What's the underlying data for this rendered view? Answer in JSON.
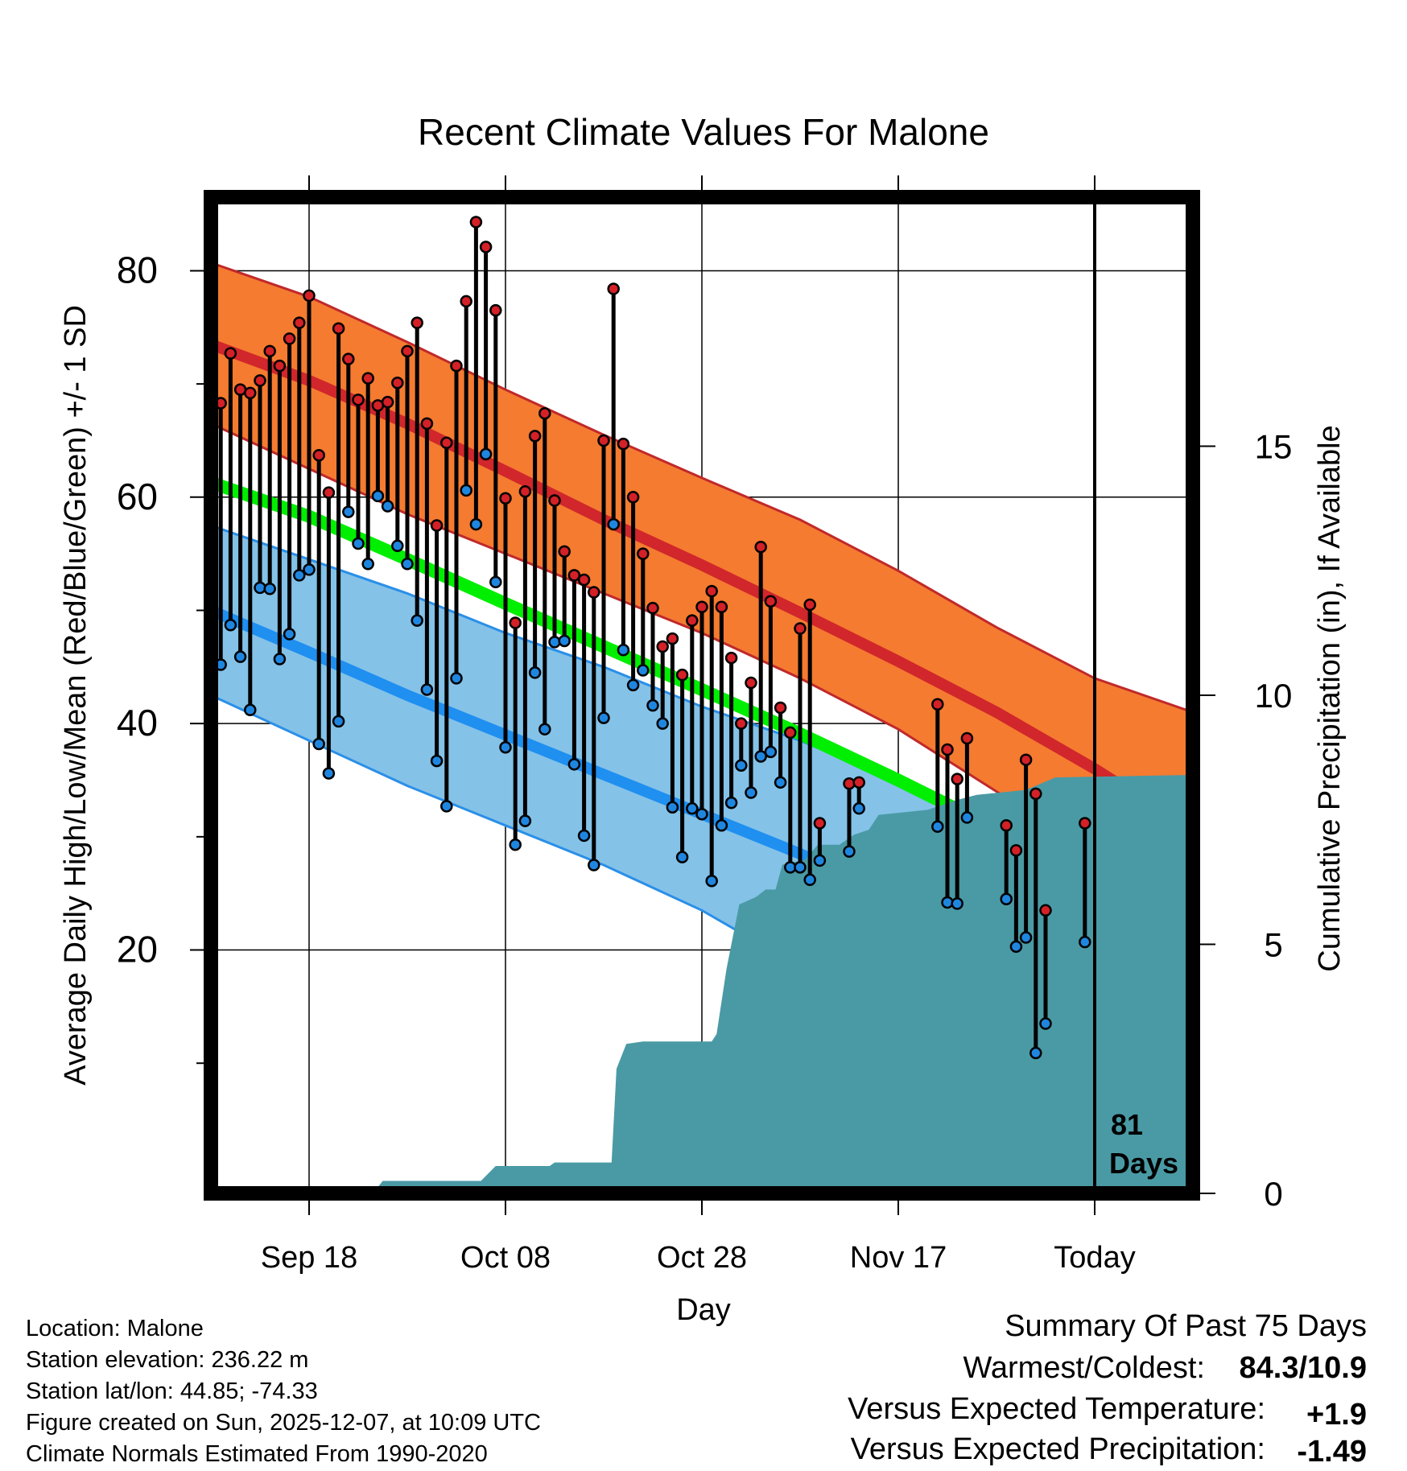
{
  "chart_data": {
    "type": "line",
    "title": "Recent Climate Values For Malone",
    "xlabel": "Day",
    "ylabel": "Average Daily High/Low/Mean (Red/Blue/Green) +/- 1 SD",
    "y2label": "Cumulative Precipitation (in), If Available",
    "xlim": [
      -10,
      90
    ],
    "ylim": [
      -1.5,
      86.5
    ],
    "y2lim": [
      0,
      20
    ],
    "xticks": [
      {
        "x": 0,
        "label": "Sep 18"
      },
      {
        "x": 20,
        "label": "Oct 08"
      },
      {
        "x": 40,
        "label": "Oct 28"
      },
      {
        "x": 60,
        "label": "Nov 17"
      },
      {
        "x": 80,
        "label": "Today"
      }
    ],
    "yticks_major": [
      20,
      40,
      60,
      80
    ],
    "yticks_minor": [
      10,
      30,
      50,
      70
    ],
    "y2ticks": [
      0,
      5,
      10,
      15
    ],
    "today_x": 80,
    "today_label_1": "81",
    "today_label_2": "Days",
    "normals": {
      "x": [
        -10,
        0,
        10,
        20,
        30,
        40,
        50,
        60,
        70,
        80,
        90
      ],
      "high_mean": [
        73.5,
        70.3,
        66.5,
        62.3,
        58.0,
        54.0,
        49.8,
        45.5,
        41.0,
        36.0,
        30.5
      ],
      "high_upper": [
        80.7,
        77.7,
        73.7,
        69.5,
        65.5,
        61.7,
        58.0,
        53.5,
        48.5,
        44.0,
        41.0
      ],
      "high_lower": [
        66.5,
        62.5,
        58.5,
        55.0,
        51.5,
        48.0,
        44.0,
        39.5,
        34.0,
        28.5,
        22.0
      ],
      "low_mean": [
        50.0,
        46.3,
        42.5,
        39.0,
        35.5,
        32.0,
        28.5,
        24.5,
        20.5,
        16.5,
        12.5
      ],
      "low_upper": [
        57.5,
        54.5,
        51.5,
        48.0,
        45.0,
        41.5,
        38.5,
        35.0,
        31.0,
        27.5,
        21.5
      ],
      "low_lower": [
        42.5,
        38.5,
        34.5,
        31.0,
        27.5,
        23.5,
        18.5,
        12.0,
        4.0,
        -1.0,
        -5.0
      ],
      "mean": [
        61.3,
        58.3,
        54.5,
        50.6,
        46.8,
        43.0,
        39.1,
        35.0,
        30.7,
        26.2,
        22.7
      ]
    },
    "daily": [
      {
        "x": -10,
        "high": 64.5,
        "low": 45.3
      },
      {
        "x": -9,
        "high": 68.3,
        "low": 45.2
      },
      {
        "x": -8,
        "high": 72.7,
        "low": 48.7
      },
      {
        "x": -7,
        "high": 69.5,
        "low": 45.9
      },
      {
        "x": -6,
        "high": 69.2,
        "low": 41.2
      },
      {
        "x": -5,
        "high": 70.3,
        "low": 52.0
      },
      {
        "x": -4,
        "high": 72.9,
        "low": 51.9
      },
      {
        "x": -3,
        "high": 71.6,
        "low": 45.7
      },
      {
        "x": -2,
        "high": 74.0,
        "low": 47.9
      },
      {
        "x": -1,
        "high": 75.4,
        "low": 53.1
      },
      {
        "x": 0,
        "high": 77.8,
        "low": 53.6
      },
      {
        "x": 1,
        "high": 63.7,
        "low": 38.2
      },
      {
        "x": 2,
        "high": 60.4,
        "low": 35.6
      },
      {
        "x": 3,
        "high": 74.9,
        "low": 40.2
      },
      {
        "x": 4,
        "high": 72.2,
        "low": 58.7
      },
      {
        "x": 5,
        "high": 68.6,
        "low": 55.9
      },
      {
        "x": 6,
        "high": 70.5,
        "low": 54.1
      },
      {
        "x": 7,
        "high": 68.1,
        "low": 60.1
      },
      {
        "x": 8,
        "high": 68.4,
        "low": 59.2
      },
      {
        "x": 9,
        "high": 70.1,
        "low": 55.7
      },
      {
        "x": 10,
        "high": 72.9,
        "low": 54.1
      },
      {
        "x": 11,
        "high": 75.4,
        "low": 49.1
      },
      {
        "x": 12,
        "high": 66.5,
        "low": 43.0
      },
      {
        "x": 13,
        "high": 57.5,
        "low": 36.7
      },
      {
        "x": 14,
        "high": 64.8,
        "low": 32.7
      },
      {
        "x": 15,
        "high": 71.6,
        "low": 44.0
      },
      {
        "x": 16,
        "high": 77.3,
        "low": 60.6
      },
      {
        "x": 17,
        "high": 84.3,
        "low": 57.6
      },
      {
        "x": 18,
        "high": 82.1,
        "low": 63.8
      },
      {
        "x": 19,
        "high": 76.5,
        "low": 52.5
      },
      {
        "x": 20,
        "high": 59.9,
        "low": 37.9
      },
      {
        "x": 21,
        "high": 48.9,
        "low": 29.3
      },
      {
        "x": 22,
        "high": 60.5,
        "low": 31.4
      },
      {
        "x": 23,
        "high": 65.4,
        "low": 44.5
      },
      {
        "x": 24,
        "high": 67.4,
        "low": 39.5
      },
      {
        "x": 25,
        "high": 59.7,
        "low": 47.2
      },
      {
        "x": 26,
        "high": 55.2,
        "low": 47.3
      },
      {
        "x": 27,
        "high": 53.1,
        "low": 36.4
      },
      {
        "x": 28,
        "high": 52.7,
        "low": 30.1
      },
      {
        "x": 29,
        "high": 51.6,
        "low": 27.5
      },
      {
        "x": 30,
        "high": 65.0,
        "low": 40.5
      },
      {
        "x": 31,
        "high": 78.4,
        "low": 57.6
      },
      {
        "x": 32,
        "high": 64.7,
        "low": 46.5
      },
      {
        "x": 33,
        "high": 60.0,
        "low": 43.4
      },
      {
        "x": 34,
        "high": 55.0,
        "low": 44.7
      },
      {
        "x": 35,
        "high": 50.2,
        "low": 41.6
      },
      {
        "x": 36,
        "high": 46.8,
        "low": 40.0
      },
      {
        "x": 37,
        "high": 47.5,
        "low": 32.6
      },
      {
        "x": 38,
        "high": 44.3,
        "low": 28.2
      },
      {
        "x": 39,
        "high": 49.1,
        "low": 32.5
      },
      {
        "x": 40,
        "high": 50.3,
        "low": 32.0
      },
      {
        "x": 41,
        "high": 51.7,
        "low": 26.1
      },
      {
        "x": 42,
        "high": 50.3,
        "low": 31.0
      },
      {
        "x": 43,
        "high": 45.8,
        "low": 33.0
      },
      {
        "x": 44,
        "high": 40.0,
        "low": 36.3
      },
      {
        "x": 45,
        "high": 43.6,
        "low": 33.9
      },
      {
        "x": 46,
        "high": 55.6,
        "low": 37.1
      },
      {
        "x": 47,
        "high": 50.8,
        "low": 37.5
      },
      {
        "x": 48,
        "high": 41.4,
        "low": 34.8
      },
      {
        "x": 49,
        "high": 39.2,
        "low": 27.3
      },
      {
        "x": 50,
        "high": 48.4,
        "low": 27.3
      },
      {
        "x": 51,
        "high": 50.5,
        "low": 26.2
      },
      {
        "x": 52,
        "high": 31.2,
        "low": 27.9
      },
      {
        "x": 55,
        "high": 34.7,
        "low": 28.7
      },
      {
        "x": 56,
        "high": 34.8,
        "low": 32.5
      },
      {
        "x": 64,
        "high": 41.7,
        "low": 30.9
      },
      {
        "x": 65,
        "high": 37.7,
        "low": 24.2
      },
      {
        "x": 66,
        "high": 35.1,
        "low": 24.1
      },
      {
        "x": 67,
        "high": 38.7,
        "low": 31.7
      },
      {
        "x": 71,
        "high": 31.0,
        "low": 24.5
      },
      {
        "x": 72,
        "high": 28.8,
        "low": 20.3
      },
      {
        "x": 73,
        "high": 36.8,
        "low": 21.1
      },
      {
        "x": 74,
        "high": 33.8,
        "low": 10.9
      },
      {
        "x": 75,
        "high": 23.5,
        "low": 13.5
      },
      {
        "x": 79,
        "high": 31.2,
        "low": 20.7
      }
    ],
    "precip_cumulative": [
      {
        "x": 6.5,
        "y": 0.0
      },
      {
        "x": 7.5,
        "y": 0.25
      },
      {
        "x": 17.5,
        "y": 0.25
      },
      {
        "x": 19.0,
        "y": 0.55
      },
      {
        "x": 24.5,
        "y": 0.55
      },
      {
        "x": 25.0,
        "y": 0.62
      },
      {
        "x": 30.8,
        "y": 0.62
      },
      {
        "x": 31.3,
        "y": 2.5
      },
      {
        "x": 32.3,
        "y": 3.0
      },
      {
        "x": 34.0,
        "y": 3.05
      },
      {
        "x": 36.0,
        "y": 3.05
      },
      {
        "x": 41.0,
        "y": 3.05
      },
      {
        "x": 41.5,
        "y": 3.2
      },
      {
        "x": 42.5,
        "y": 4.5
      },
      {
        "x": 43.8,
        "y": 5.8
      },
      {
        "x": 45.5,
        "y": 5.95
      },
      {
        "x": 46.5,
        "y": 6.1
      },
      {
        "x": 47.5,
        "y": 6.1
      },
      {
        "x": 48.2,
        "y": 6.6
      },
      {
        "x": 50.5,
        "y": 6.7
      },
      {
        "x": 51.8,
        "y": 7.0
      },
      {
        "x": 54.0,
        "y": 7.0
      },
      {
        "x": 55.5,
        "y": 7.2
      },
      {
        "x": 57.0,
        "y": 7.3
      },
      {
        "x": 58.0,
        "y": 7.6
      },
      {
        "x": 63.0,
        "y": 7.7
      },
      {
        "x": 66.0,
        "y": 7.9
      },
      {
        "x": 68.0,
        "y": 8.0
      },
      {
        "x": 73.0,
        "y": 8.1
      },
      {
        "x": 76.0,
        "y": 8.35
      },
      {
        "x": 90.0,
        "y": 8.4
      }
    ],
    "colors": {
      "high_band": "#f47b30",
      "high_line": "#d1262b",
      "high_outline": "#c0292b",
      "low_band": "#84c2e8",
      "low_line": "#1f8ff0",
      "low_outline": "#2a8fe8",
      "mean_line": "#00ee00",
      "overlap": "#9b1317",
      "precip": "#4a9aa5",
      "high_dot": "#d42027",
      "low_dot": "#1f86e0"
    }
  },
  "footer": {
    "location": "Location: Malone",
    "elevation": "Station elevation: 236.22 m",
    "latlon": "Station lat/lon: 44.85; -74.33",
    "created": "Figure created on Sun, 2025-12-07, at 10:09 UTC",
    "normals": "Climate Normals Estimated From 1990-2020"
  },
  "summary": {
    "title": "Summary Of Past 75 Days",
    "warm_cold_label": "Warmest/Coldest:",
    "warm_cold_value": "84.3/10.9",
    "temp_label": "Versus Expected Temperature:",
    "temp_value": "+1.9",
    "temp_color": "#d2232a",
    "precip_label": "Versus Expected Precipitation:",
    "precip_value": "-1.49",
    "precip_color": "#a0522d"
  }
}
